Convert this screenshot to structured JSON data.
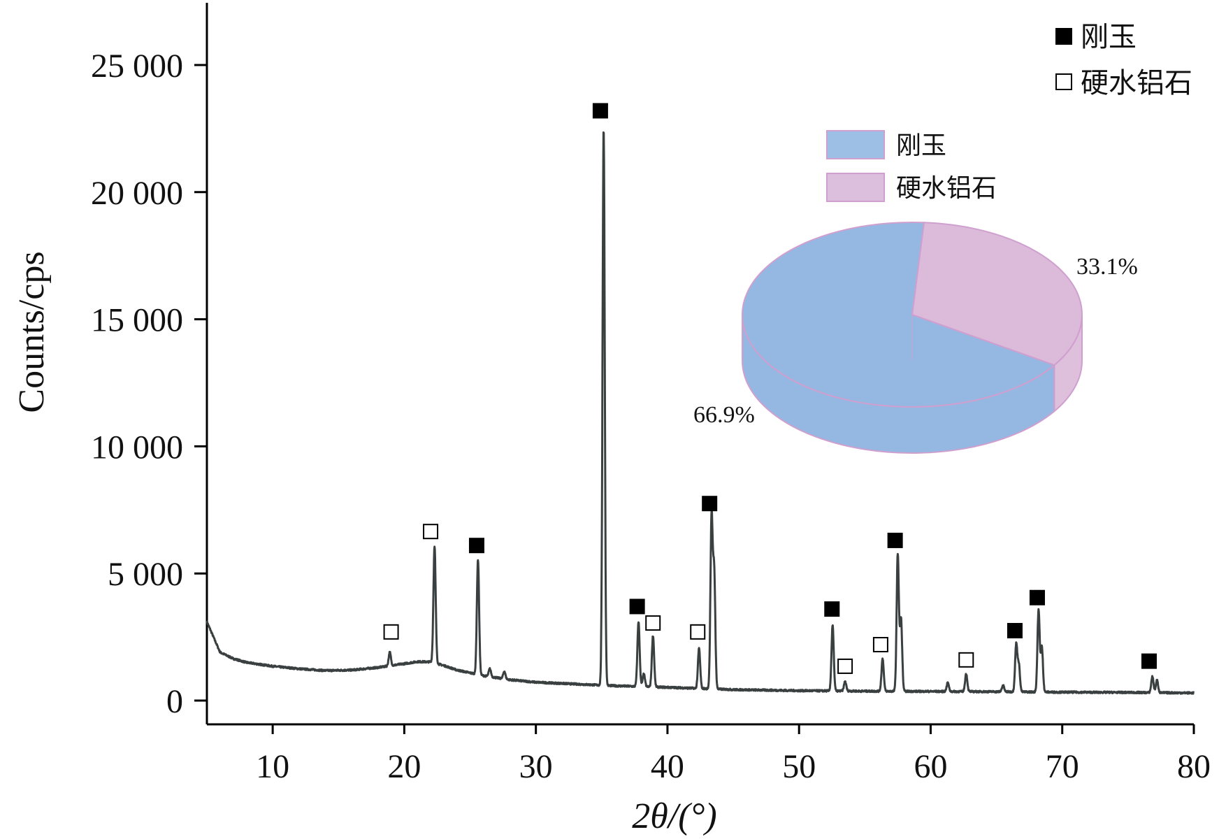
{
  "chart_data": [
    {
      "type": "line",
      "xlabel": "2θ/(°)",
      "ylabel": "Counts/cps",
      "xlim": [
        5,
        80
      ],
      "ylim": [
        0,
        27500
      ],
      "xticks": [
        10,
        20,
        30,
        40,
        50,
        60,
        70,
        80
      ],
      "yticks": [
        0,
        5000,
        10000,
        15000,
        20000,
        25000
      ],
      "ytick_labels": [
        "0",
        "5 000",
        "10 000",
        "15 000",
        "20 000",
        "25 000"
      ],
      "grid": false,
      "series_color": "#3a3f40",
      "background": {
        "x": [
          5,
          6,
          7,
          8,
          10,
          12,
          14,
          16,
          18,
          20,
          21,
          22,
          23,
          24,
          26,
          28,
          30,
          33,
          36,
          40,
          45,
          50,
          55,
          60,
          65,
          70,
          75,
          80
        ],
        "y": [
          3100,
          1900,
          1650,
          1500,
          1350,
          1250,
          1180,
          1200,
          1300,
          1450,
          1530,
          1520,
          1380,
          1200,
          980,
          820,
          720,
          650,
          580,
          520,
          430,
          390,
          370,
          360,
          350,
          330,
          320,
          300
        ]
      },
      "peaks": [
        {
          "x": 18.9,
          "y": 1900,
          "phase": "硬水铝石"
        },
        {
          "x": 22.3,
          "y": 6050,
          "phase": "硬水铝石"
        },
        {
          "x": 25.6,
          "y": 5550,
          "phase": "刚玉"
        },
        {
          "x": 26.5,
          "y": 1250,
          "phase": ""
        },
        {
          "x": 27.6,
          "y": 1150,
          "phase": ""
        },
        {
          "x": 35.15,
          "y": 22500,
          "phase": "刚玉"
        },
        {
          "x": 37.8,
          "y": 3100,
          "phase": "刚玉"
        },
        {
          "x": 38.2,
          "y": 1050,
          "phase": ""
        },
        {
          "x": 38.9,
          "y": 2550,
          "phase": "硬水铝石"
        },
        {
          "x": 42.4,
          "y": 2050,
          "phase": "硬水铝石"
        },
        {
          "x": 43.35,
          "y": 7150,
          "phase": "刚玉"
        },
        {
          "x": 43.55,
          "y": 5000,
          "phase": ""
        },
        {
          "x": 52.55,
          "y": 2950,
          "phase": "刚玉"
        },
        {
          "x": 53.5,
          "y": 750,
          "phase": "硬水铝石"
        },
        {
          "x": 56.35,
          "y": 1650,
          "phase": "硬水铝石"
        },
        {
          "x": 57.5,
          "y": 5750,
          "phase": "刚玉"
        },
        {
          "x": 57.75,
          "y": 3200,
          "phase": ""
        },
        {
          "x": 61.3,
          "y": 700,
          "phase": ""
        },
        {
          "x": 62.7,
          "y": 1050,
          "phase": "硬水铝石"
        },
        {
          "x": 65.5,
          "y": 600,
          "phase": ""
        },
        {
          "x": 66.5,
          "y": 2200,
          "phase": "刚玉"
        },
        {
          "x": 66.7,
          "y": 1400,
          "phase": ""
        },
        {
          "x": 68.2,
          "y": 3550,
          "phase": "刚玉"
        },
        {
          "x": 68.45,
          "y": 2100,
          "phase": ""
        },
        {
          "x": 76.85,
          "y": 950,
          "phase": "刚玉"
        },
        {
          "x": 77.2,
          "y": 800,
          "phase": ""
        }
      ],
      "markers": [
        {
          "x": 19.0,
          "y": 2700,
          "kind": "open"
        },
        {
          "x": 22.0,
          "y": 6650,
          "kind": "open"
        },
        {
          "x": 25.5,
          "y": 6100,
          "kind": "filled"
        },
        {
          "x": 34.9,
          "y": 23200,
          "kind": "filled"
        },
        {
          "x": 37.7,
          "y": 3700,
          "kind": "filled"
        },
        {
          "x": 38.9,
          "y": 3050,
          "kind": "open"
        },
        {
          "x": 42.3,
          "y": 2700,
          "kind": "open"
        },
        {
          "x": 43.2,
          "y": 7750,
          "kind": "filled"
        },
        {
          "x": 52.5,
          "y": 3600,
          "kind": "filled"
        },
        {
          "x": 53.5,
          "y": 1350,
          "kind": "open"
        },
        {
          "x": 56.2,
          "y": 2200,
          "kind": "open"
        },
        {
          "x": 57.3,
          "y": 6300,
          "kind": "filled"
        },
        {
          "x": 62.7,
          "y": 1600,
          "kind": "open"
        },
        {
          "x": 66.4,
          "y": 2750,
          "kind": "filled"
        },
        {
          "x": 68.1,
          "y": 4050,
          "kind": "filled"
        },
        {
          "x": 76.6,
          "y": 1550,
          "kind": "filled"
        }
      ]
    },
    {
      "type": "pie",
      "slices": [
        {
          "name": "刚玉",
          "value": 66.9,
          "label": "66.9%",
          "color": "#8fb4e0"
        },
        {
          "name": "硬水铝石",
          "value": 33.1,
          "label": "33.1%",
          "color": "#d8b4d6"
        }
      ],
      "outline_color": "#cfa0cf"
    }
  ],
  "legend": {
    "items": [
      {
        "symbol": "filled-square",
        "label": "刚玉"
      },
      {
        "symbol": "open-square",
        "label": "硬水铝石"
      }
    ]
  },
  "pie_legend": {
    "items": [
      {
        "label": "刚玉",
        "color": "#9dbfe5"
      },
      {
        "label": "硬水铝石",
        "color": "#dcbfdc"
      }
    ]
  }
}
